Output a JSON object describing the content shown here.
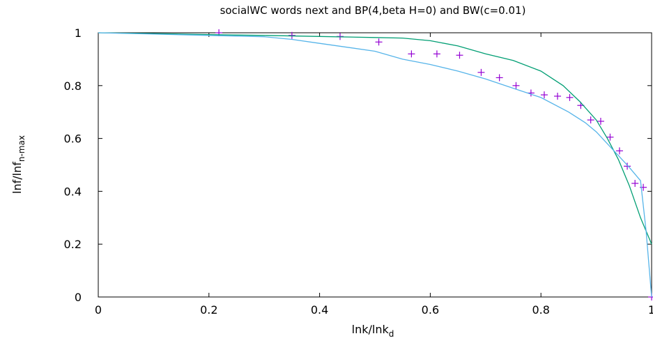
{
  "chart_data": {
    "type": "line",
    "title": "socialWC words next and BP(4,beta H=0) and BW(c=0.01)",
    "xlabel": {
      "main": "lnk/lnk",
      "sub": "d"
    },
    "ylabel": {
      "main": "lnf/lnf",
      "sub": "n-max"
    },
    "xlim": [
      0,
      1
    ],
    "ylim": [
      0,
      1
    ],
    "x_ticks": [
      0,
      0.2,
      0.4,
      0.6,
      0.8,
      1
    ],
    "y_ticks": [
      0,
      0.2,
      0.4,
      0.6,
      0.8,
      1
    ],
    "x_tick_labels": [
      "0",
      "0.2",
      "0.4",
      "0.6",
      "0.8",
      "1"
    ],
    "y_tick_labels": [
      "0",
      "0.2",
      "0.4",
      "0.6",
      "0.8",
      "1"
    ],
    "grid": false,
    "series": [
      {
        "style": "points",
        "marker": "+",
        "color": "#9400d3",
        "x": [
          0.218,
          0.35,
          0.437,
          0.507,
          0.566,
          0.612,
          0.653,
          0.692,
          0.725,
          0.755,
          0.782,
          0.806,
          0.83,
          0.852,
          0.872,
          0.89,
          0.908,
          0.925,
          0.942,
          0.956,
          0.97,
          0.985,
          1.0
        ],
        "y": [
          1.0,
          0.99,
          0.986,
          0.965,
          0.92,
          0.92,
          0.915,
          0.85,
          0.83,
          0.8,
          0.772,
          0.765,
          0.76,
          0.755,
          0.725,
          0.67,
          0.665,
          0.605,
          0.553,
          0.495,
          0.43,
          0.415,
          0.0
        ]
      },
      {
        "style": "line",
        "color": "#009e73",
        "x": [
          0,
          0.1,
          0.2,
          0.3,
          0.4,
          0.5,
          0.55,
          0.6,
          0.62,
          0.65,
          0.7,
          0.75,
          0.8,
          0.84,
          0.87,
          0.9,
          0.92,
          0.94,
          0.96,
          0.98,
          1.0
        ],
        "y": [
          1.0,
          0.997,
          0.993,
          0.99,
          0.986,
          0.982,
          0.98,
          0.97,
          0.962,
          0.95,
          0.92,
          0.895,
          0.855,
          0.8,
          0.74,
          0.67,
          0.6,
          0.52,
          0.42,
          0.3,
          0.2
        ]
      },
      {
        "style": "line",
        "color": "#56b4e9",
        "x": [
          0,
          0.1,
          0.2,
          0.3,
          0.35,
          0.4,
          0.45,
          0.5,
          0.55,
          0.6,
          0.65,
          0.7,
          0.75,
          0.8,
          0.85,
          0.88,
          0.9,
          0.92,
          0.94,
          0.96,
          0.97,
          0.98,
          0.99,
          1.0
        ],
        "y": [
          1.0,
          0.995,
          0.99,
          0.985,
          0.975,
          0.96,
          0.945,
          0.93,
          0.9,
          0.88,
          0.855,
          0.825,
          0.79,
          0.755,
          0.7,
          0.66,
          0.625,
          0.58,
          0.535,
          0.49,
          0.465,
          0.44,
          0.25,
          0.0
        ]
      }
    ]
  }
}
